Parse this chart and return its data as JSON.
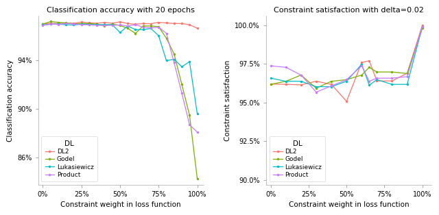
{
  "left_title": "Classification accuracy with 20 epochs",
  "right_title": "Constraint satisfaction with delta=0.02",
  "xlabel": "Constraint weight in loss function",
  "left_ylabel": "Classification accuracy",
  "right_ylabel": "Constraint satisfaction",
  "colors": {
    "DL2": "#F8766D",
    "Godel": "#7CAE00",
    "Lukasiewicz": "#00BFC4",
    "Product": "#C77CFF"
  },
  "left_x": [
    0,
    0.05,
    0.1,
    0.15,
    0.2,
    0.25,
    0.3,
    0.35,
    0.4,
    0.45,
    0.5,
    0.55,
    0.6,
    0.65,
    0.7,
    0.75,
    0.8,
    0.85,
    0.9,
    0.95,
    1.0
  ],
  "left_DL2": [
    0.9695,
    0.97,
    0.9698,
    0.9702,
    0.97,
    0.971,
    0.9704,
    0.97,
    0.9708,
    0.97,
    0.9712,
    0.9698,
    0.9692,
    0.9698,
    0.9696,
    0.9708,
    0.9703,
    0.9698,
    0.9698,
    0.9688,
    0.966
  ],
  "left_Godel": [
    0.9694,
    0.9714,
    0.9708,
    0.9703,
    0.9696,
    0.9698,
    0.9698,
    0.9693,
    0.9678,
    0.9693,
    0.9683,
    0.9658,
    0.9618,
    0.9678,
    0.9678,
    0.9672,
    0.9578,
    0.945,
    0.92,
    0.895,
    0.843
  ],
  "left_Lukasiewicz": [
    0.9686,
    0.9693,
    0.9693,
    0.9688,
    0.9686,
    0.9693,
    0.9691,
    0.9688,
    0.969,
    0.9688,
    0.9625,
    0.9678,
    0.9648,
    0.9648,
    0.9658,
    0.9598,
    0.9395,
    0.9405,
    0.9345,
    0.9385,
    0.896
  ],
  "left_Product": [
    0.9683,
    0.9693,
    0.9691,
    0.9698,
    0.9696,
    0.9688,
    0.9688,
    0.9683,
    0.9683,
    0.9683,
    0.9686,
    0.9678,
    0.9688,
    0.9668,
    0.9663,
    0.9668,
    0.9618,
    0.9378,
    0.913,
    0.887,
    0.881
  ],
  "right_x": [
    0,
    0.1,
    0.2,
    0.3,
    0.4,
    0.5,
    0.6,
    0.65,
    0.7,
    0.8,
    0.9,
    1.0
  ],
  "right_DL2": [
    0.962,
    0.9618,
    0.9615,
    0.9638,
    0.9618,
    0.9508,
    0.976,
    0.977,
    0.964,
    0.964,
    0.969,
    1.0
  ],
  "right_Godel": [
    0.9618,
    0.9638,
    0.9678,
    0.9593,
    0.9638,
    0.9648,
    0.9678,
    0.9728,
    0.9698,
    0.9698,
    0.9688,
    0.998
  ],
  "right_Lukasiewicz": [
    0.9658,
    0.9638,
    0.9638,
    0.9603,
    0.9603,
    0.9638,
    0.9748,
    0.9613,
    0.9648,
    0.9618,
    0.9618,
    0.999
  ],
  "right_Product": [
    0.9738,
    0.9728,
    0.9678,
    0.9568,
    0.9608,
    0.9648,
    0.9738,
    0.9638,
    0.9658,
    0.9658,
    0.9668,
    0.999
  ],
  "left_ylim": [
    0.838,
    0.976
  ],
  "right_ylim": [
    0.897,
    1.006
  ],
  "left_yticks": [
    0.86,
    0.9,
    0.94
  ],
  "right_yticks": [
    0.9,
    0.925,
    0.95,
    0.975,
    1.0
  ],
  "xticks_left": [
    0,
    0.25,
    0.5,
    0.75,
    1.0
  ],
  "xticks_right": [
    0,
    0.25,
    0.5,
    0.75,
    1.0
  ],
  "left_xlim": [
    -0.03,
    1.04
  ],
  "right_xlim": [
    -0.03,
    1.06
  ]
}
